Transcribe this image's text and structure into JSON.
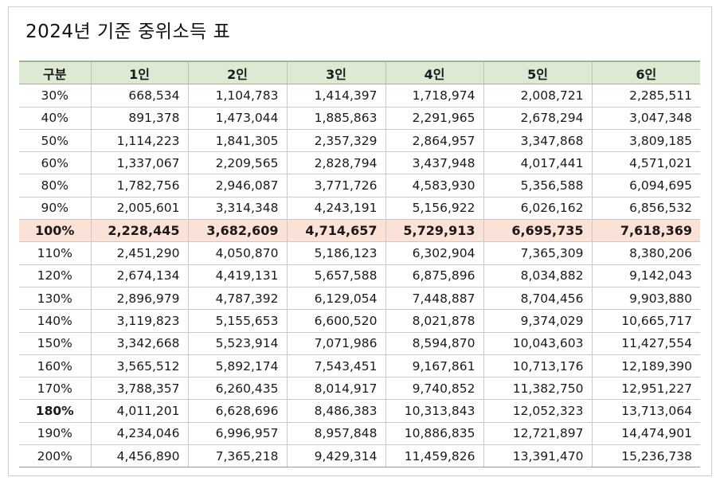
{
  "title": "2024년 기준 중위소득 표",
  "headers": [
    "구분",
    "1인",
    "2인",
    "3인",
    "4인",
    "5인",
    "6인"
  ],
  "rows": [
    [
      "30%",
      "668,534",
      "1,104,783",
      "1,414,397",
      "1,718,974",
      "2,008,721",
      "2,285,511"
    ],
    [
      "40%",
      "891,378",
      "1,473,044",
      "1,885,863",
      "2,291,965",
      "2,678,294",
      "3,047,348"
    ],
    [
      "50%",
      "1,114,223",
      "1,841,305",
      "2,357,329",
      "2,864,957",
      "3,347,868",
      "3,809,185"
    ],
    [
      "60%",
      "1,337,067",
      "2,209,565",
      "2,828,794",
      "3,437,948",
      "4,017,441",
      "4,571,021"
    ],
    [
      "80%",
      "1,782,756",
      "2,946,087",
      "3,771,726",
      "4,583,930",
      "5,356,588",
      "6,094,695"
    ],
    [
      "90%",
      "2,005,601",
      "3,314,348",
      "4,243,191",
      "5,156,922",
      "6,026,162",
      "6,856,532"
    ],
    [
      "100%",
      "2,228,445",
      "3,682,609",
      "4,714,657",
      "5,729,913",
      "6,695,735",
      "7,618,369"
    ],
    [
      "110%",
      "2,451,290",
      "4,050,870",
      "5,186,123",
      "6,302,904",
      "7,365,309",
      "8,380,206"
    ],
    [
      "120%",
      "2,674,134",
      "4,419,131",
      "5,657,588",
      "6,875,896",
      "8,034,882",
      "9,142,043"
    ],
    [
      "130%",
      "2,896,979",
      "4,787,392",
      "6,129,054",
      "7,448,887",
      "8,704,456",
      "9,903,880"
    ],
    [
      "140%",
      "3,119,823",
      "5,155,653",
      "6,600,520",
      "8,021,878",
      "9,374,029",
      "10,665,717"
    ],
    [
      "150%",
      "3,342,668",
      "5,523,914",
      "7,071,986",
      "8,594,870",
      "10,043,603",
      "11,427,554"
    ],
    [
      "160%",
      "3,565,512",
      "5,892,174",
      "7,543,451",
      "9,167,861",
      "10,713,176",
      "12,189,390"
    ],
    [
      "170%",
      "3,788,357",
      "6,260,435",
      "8,014,917",
      "9,740,852",
      "11,382,750",
      "12,951,227"
    ],
    [
      "180%",
      "4,011,201",
      "6,628,696",
      "8,486,383",
      "10,313,843",
      "12,052,323",
      "13,713,064"
    ],
    [
      "190%",
      "4,234,046",
      "6,996,957",
      "8,957,848",
      "10,886,835",
      "12,721,897",
      "14,474,901"
    ],
    [
      "200%",
      "4,456,890",
      "7,365,218",
      "9,429,314",
      "11,459,826",
      "13,391,470",
      "15,236,738"
    ]
  ],
  "highlight_row": "100%",
  "bold_label_row": "180%",
  "colors": {
    "header_bg": "#dcead3",
    "highlight_bg": "#fbe1d6"
  }
}
